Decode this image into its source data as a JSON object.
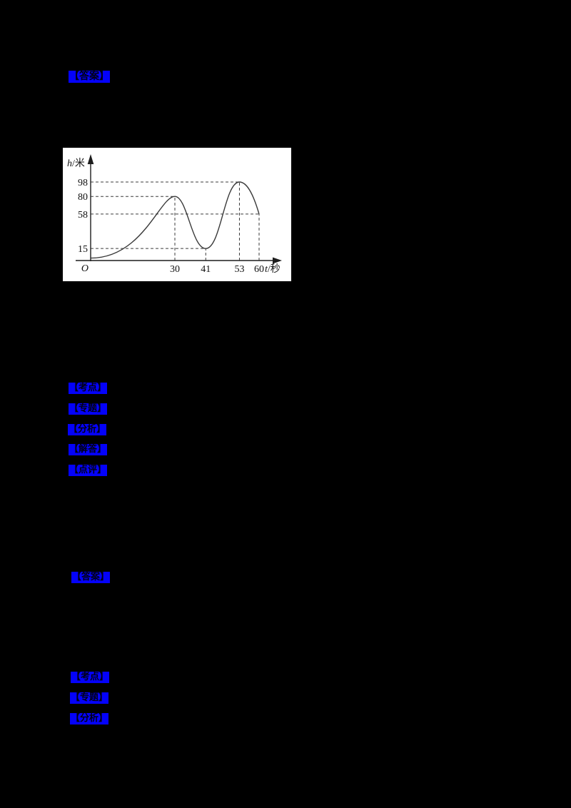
{
  "document": {
    "background_color": "#000000",
    "highlight_color": "#0402fa",
    "label_text_color": "#000016",
    "answer_label_1": "【答案】",
    "answer_label_2": "【答案】",
    "solution_labels_mid": [
      "【考点】",
      "【专题】",
      "【分析】",
      "【解答】",
      "【点评】"
    ],
    "solution_labels_bottom": [
      "【考点】",
      "【专题】",
      "【分析】"
    ]
  },
  "chart_data": {
    "type": "line",
    "title": "",
    "xlabel": "t/秒",
    "ylabel": "h/米",
    "origin_label": "O",
    "x_ticks": [
      "30",
      "41",
      "53",
      "60"
    ],
    "y_ticks": [
      "98",
      "80",
      "58",
      "15"
    ],
    "xlim": [
      0,
      66
    ],
    "ylim": [
      0,
      112
    ],
    "grid": false,
    "legend": null,
    "line_color": "#3a3a3a",
    "plot_background": "#ffffff",
    "dashed_guides": true,
    "curve_points": [
      {
        "t": 0,
        "h": 3
      },
      {
        "t": 30,
        "h": 80
      },
      {
        "t": 41,
        "h": 15
      },
      {
        "t": 53,
        "h": 98
      },
      {
        "t": 60,
        "h": 58
      }
    ],
    "guide_points": [
      {
        "t": 30,
        "h": 80
      },
      {
        "t": 41,
        "h": 15
      },
      {
        "t": 53,
        "h": 98
      },
      {
        "t": 60,
        "h": 58
      }
    ]
  }
}
